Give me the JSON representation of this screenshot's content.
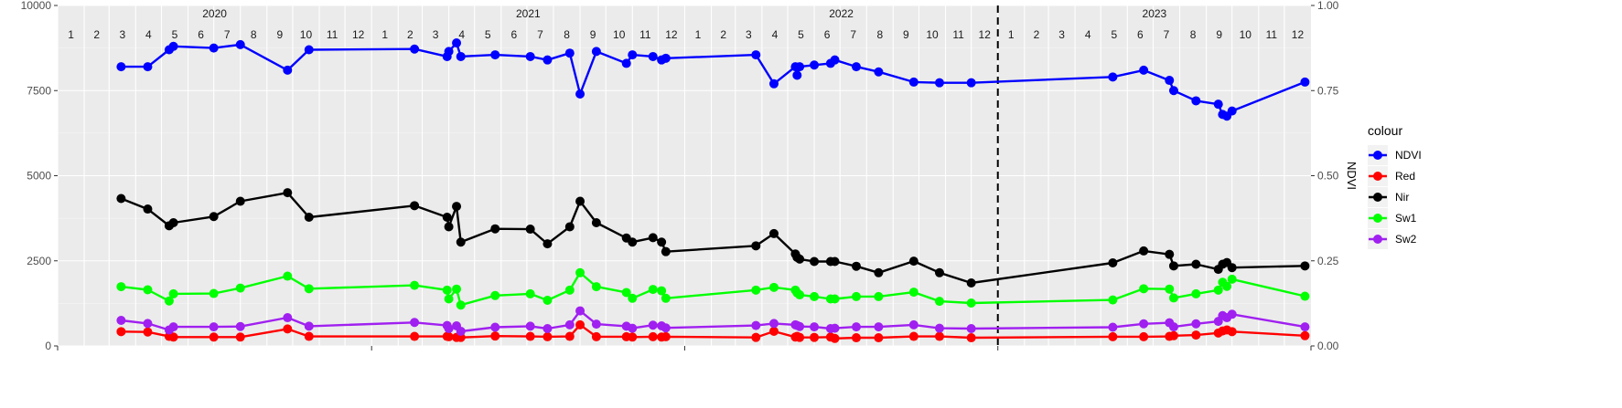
{
  "chart_data": {
    "type": "line",
    "title": "",
    "xlabel": "",
    "ylabel_left": "",
    "ylabel_right": "NDVI",
    "ylim_left": [
      0,
      10000
    ],
    "ylim_right": [
      0,
      1
    ],
    "xlim": [
      "2020-01-01",
      "2024-01-01"
    ],
    "left_ticks": [
      "0",
      "2500",
      "5000",
      "7500",
      "10000"
    ],
    "right_ticks": [
      "0.00",
      "0.25",
      "0.50",
      "0.75",
      "1.00"
    ],
    "years": [
      "2020",
      "2021",
      "2022",
      "2023"
    ],
    "month_labels": [
      "1",
      "2",
      "3",
      "4",
      "5",
      "6",
      "7",
      "8",
      "9",
      "10",
      "11",
      "12"
    ],
    "vline_date": "2023-01-01",
    "grid": true,
    "legend": {
      "title": "colour",
      "position": "right",
      "entries": [
        "NDVI",
        "Red",
        "Nir",
        "Sw1",
        "Sw2"
      ]
    },
    "colors": {
      "NDVI": "#0000ff",
      "Red": "#ff0000",
      "Nir": "#000000",
      "Sw1": "#00ff00",
      "Sw2": "#a020f0"
    },
    "series": [
      {
        "name": "NDVI",
        "axis": "right",
        "points": [
          [
            "2020-03-15",
            0.82
          ],
          [
            "2020-04-15",
            0.82
          ],
          [
            "2020-05-10",
            0.87
          ],
          [
            "2020-05-15",
            0.88
          ],
          [
            "2020-07-01",
            0.875
          ],
          [
            "2020-08-01",
            0.885
          ],
          [
            "2020-09-25",
            0.81
          ],
          [
            "2020-10-20",
            0.87
          ],
          [
            "2021-02-20",
            0.872
          ],
          [
            "2021-03-30",
            0.85
          ],
          [
            "2021-04-01",
            0.865
          ],
          [
            "2021-04-10",
            0.89
          ],
          [
            "2021-04-15",
            0.85
          ],
          [
            "2021-05-25",
            0.855
          ],
          [
            "2021-07-05",
            0.85
          ],
          [
            "2021-07-25",
            0.84
          ],
          [
            "2021-08-20",
            0.86
          ],
          [
            "2021-09-01",
            0.74
          ],
          [
            "2021-09-20",
            0.865
          ],
          [
            "2021-10-25",
            0.83
          ],
          [
            "2021-11-01",
            0.855
          ],
          [
            "2021-11-25",
            0.85
          ],
          [
            "2021-12-05",
            0.84
          ],
          [
            "2021-12-10",
            0.845
          ],
          [
            "2022-03-25",
            0.855
          ],
          [
            "2022-04-15",
            0.77
          ],
          [
            "2022-05-10",
            0.82
          ],
          [
            "2022-05-12",
            0.795
          ],
          [
            "2022-05-15",
            0.82
          ],
          [
            "2022-06-01",
            0.825
          ],
          [
            "2022-06-20",
            0.83
          ],
          [
            "2022-06-25",
            0.84
          ],
          [
            "2022-07-20",
            0.82
          ],
          [
            "2022-08-15",
            0.805
          ],
          [
            "2022-09-25",
            0.775
          ],
          [
            "2022-10-25",
            0.773
          ],
          [
            "2022-12-01",
            0.773
          ],
          [
            "2023-05-15",
            0.79
          ],
          [
            "2023-06-20",
            0.81
          ],
          [
            "2023-07-20",
            0.78
          ],
          [
            "2023-07-25",
            0.75
          ],
          [
            "2023-08-20",
            0.72
          ],
          [
            "2023-09-15",
            0.71
          ],
          [
            "2023-09-20",
            0.68
          ],
          [
            "2023-09-25",
            0.675
          ],
          [
            "2023-10-01",
            0.69
          ],
          [
            "2023-12-25",
            0.775
          ]
        ]
      },
      {
        "name": "Red",
        "axis": "left",
        "points": [
          [
            "2020-03-15",
            420
          ],
          [
            "2020-04-15",
            410
          ],
          [
            "2020-05-10",
            280
          ],
          [
            "2020-05-15",
            260
          ],
          [
            "2020-07-01",
            260
          ],
          [
            "2020-08-01",
            260
          ],
          [
            "2020-09-25",
            500
          ],
          [
            "2020-10-20",
            280
          ],
          [
            "2021-02-20",
            280
          ],
          [
            "2021-03-30",
            280
          ],
          [
            "2021-04-01",
            270
          ],
          [
            "2021-04-10",
            250
          ],
          [
            "2021-04-15",
            250
          ],
          [
            "2021-05-25",
            290
          ],
          [
            "2021-07-05",
            280
          ],
          [
            "2021-07-25",
            270
          ],
          [
            "2021-08-20",
            280
          ],
          [
            "2021-09-01",
            620
          ],
          [
            "2021-09-20",
            270
          ],
          [
            "2021-10-25",
            270
          ],
          [
            "2021-11-01",
            260
          ],
          [
            "2021-11-25",
            270
          ],
          [
            "2021-12-05",
            260
          ],
          [
            "2021-12-10",
            270
          ],
          [
            "2022-03-25",
            250
          ],
          [
            "2022-04-15",
            430
          ],
          [
            "2022-05-10",
            260
          ],
          [
            "2022-05-12",
            280
          ],
          [
            "2022-05-15",
            250
          ],
          [
            "2022-06-01",
            250
          ],
          [
            "2022-06-20",
            260
          ],
          [
            "2022-06-25",
            220
          ],
          [
            "2022-07-20",
            240
          ],
          [
            "2022-08-15",
            240
          ],
          [
            "2022-09-25",
            280
          ],
          [
            "2022-10-25",
            280
          ],
          [
            "2022-12-01",
            240
          ],
          [
            "2023-05-15",
            270
          ],
          [
            "2023-06-20",
            270
          ],
          [
            "2023-07-20",
            280
          ],
          [
            "2023-07-25",
            300
          ],
          [
            "2023-08-20",
            320
          ],
          [
            "2023-09-15",
            380
          ],
          [
            "2023-09-20",
            440
          ],
          [
            "2023-09-25",
            470
          ],
          [
            "2023-10-01",
            420
          ],
          [
            "2023-12-25",
            300
          ]
        ]
      },
      {
        "name": "Nir",
        "axis": "left",
        "points": [
          [
            "2020-03-15",
            4330
          ],
          [
            "2020-04-15",
            4020
          ],
          [
            "2020-05-10",
            3530
          ],
          [
            "2020-05-15",
            3620
          ],
          [
            "2020-07-01",
            3800
          ],
          [
            "2020-08-01",
            4250
          ],
          [
            "2020-09-25",
            4500
          ],
          [
            "2020-10-20",
            3780
          ],
          [
            "2021-02-20",
            4120
          ],
          [
            "2021-03-30",
            3780
          ],
          [
            "2021-04-01",
            3500
          ],
          [
            "2021-04-10",
            4100
          ],
          [
            "2021-04-15",
            3050
          ],
          [
            "2021-05-25",
            3440
          ],
          [
            "2021-07-05",
            3430
          ],
          [
            "2021-07-25",
            3000
          ],
          [
            "2021-08-20",
            3500
          ],
          [
            "2021-09-01",
            4250
          ],
          [
            "2021-09-20",
            3620
          ],
          [
            "2021-10-25",
            3170
          ],
          [
            "2021-11-01",
            3050
          ],
          [
            "2021-11-25",
            3180
          ],
          [
            "2021-12-05",
            3050
          ],
          [
            "2021-12-10",
            2770
          ],
          [
            "2022-03-25",
            2940
          ],
          [
            "2022-04-15",
            3300
          ],
          [
            "2022-05-10",
            2700
          ],
          [
            "2022-05-12",
            2600
          ],
          [
            "2022-05-15",
            2550
          ],
          [
            "2022-06-01",
            2480
          ],
          [
            "2022-06-20",
            2480
          ],
          [
            "2022-06-25",
            2480
          ],
          [
            "2022-07-20",
            2340
          ],
          [
            "2022-08-15",
            2150
          ],
          [
            "2022-09-25",
            2490
          ],
          [
            "2022-10-25",
            2150
          ],
          [
            "2022-12-01",
            1850
          ],
          [
            "2023-05-15",
            2440
          ],
          [
            "2023-06-20",
            2790
          ],
          [
            "2023-07-20",
            2690
          ],
          [
            "2023-07-25",
            2350
          ],
          [
            "2023-08-20",
            2400
          ],
          [
            "2023-09-15",
            2250
          ],
          [
            "2023-09-20",
            2400
          ],
          [
            "2023-09-25",
            2450
          ],
          [
            "2023-10-01",
            2300
          ],
          [
            "2023-12-25",
            2350
          ]
        ]
      },
      {
        "name": "Sw1",
        "axis": "left",
        "points": [
          [
            "2020-03-15",
            1740
          ],
          [
            "2020-04-15",
            1650
          ],
          [
            "2020-05-10",
            1320
          ],
          [
            "2020-05-15",
            1530
          ],
          [
            "2020-07-01",
            1540
          ],
          [
            "2020-08-01",
            1700
          ],
          [
            "2020-09-25",
            2050
          ],
          [
            "2020-10-20",
            1680
          ],
          [
            "2021-02-20",
            1780
          ],
          [
            "2021-03-30",
            1640
          ],
          [
            "2021-04-01",
            1380
          ],
          [
            "2021-04-10",
            1670
          ],
          [
            "2021-04-15",
            1200
          ],
          [
            "2021-05-25",
            1480
          ],
          [
            "2021-07-05",
            1530
          ],
          [
            "2021-07-25",
            1340
          ],
          [
            "2021-08-20",
            1640
          ],
          [
            "2021-09-01",
            2150
          ],
          [
            "2021-09-20",
            1740
          ],
          [
            "2021-10-25",
            1570
          ],
          [
            "2021-11-01",
            1400
          ],
          [
            "2021-11-25",
            1660
          ],
          [
            "2021-12-05",
            1620
          ],
          [
            "2021-12-10",
            1400
          ],
          [
            "2022-03-25",
            1640
          ],
          [
            "2022-04-15",
            1720
          ],
          [
            "2022-05-10",
            1640
          ],
          [
            "2022-05-12",
            1560
          ],
          [
            "2022-05-15",
            1500
          ],
          [
            "2022-06-01",
            1450
          ],
          [
            "2022-06-20",
            1380
          ],
          [
            "2022-06-25",
            1380
          ],
          [
            "2022-07-20",
            1450
          ],
          [
            "2022-08-15",
            1450
          ],
          [
            "2022-09-25",
            1580
          ],
          [
            "2022-10-25",
            1310
          ],
          [
            "2022-12-01",
            1260
          ],
          [
            "2023-05-15",
            1350
          ],
          [
            "2023-06-20",
            1680
          ],
          [
            "2023-07-20",
            1670
          ],
          [
            "2023-07-25",
            1410
          ],
          [
            "2023-08-20",
            1530
          ],
          [
            "2023-09-15",
            1640
          ],
          [
            "2023-09-20",
            1870
          ],
          [
            "2023-09-25",
            1750
          ],
          [
            "2023-10-01",
            1960
          ],
          [
            "2023-12-25",
            1460
          ]
        ]
      },
      {
        "name": "Sw2",
        "axis": "left",
        "points": [
          [
            "2020-03-15",
            750
          ],
          [
            "2020-04-15",
            660
          ],
          [
            "2020-05-10",
            470
          ],
          [
            "2020-05-15",
            560
          ],
          [
            "2020-07-01",
            560
          ],
          [
            "2020-08-01",
            570
          ],
          [
            "2020-09-25",
            830
          ],
          [
            "2020-10-20",
            580
          ],
          [
            "2021-02-20",
            690
          ],
          [
            "2021-03-30",
            600
          ],
          [
            "2021-04-01",
            510
          ],
          [
            "2021-04-10",
            590
          ],
          [
            "2021-04-15",
            430
          ],
          [
            "2021-05-25",
            550
          ],
          [
            "2021-07-05",
            580
          ],
          [
            "2021-07-25",
            510
          ],
          [
            "2021-08-20",
            620
          ],
          [
            "2021-09-01",
            1030
          ],
          [
            "2021-09-20",
            640
          ],
          [
            "2021-10-25",
            580
          ],
          [
            "2021-11-01",
            520
          ],
          [
            "2021-11-25",
            610
          ],
          [
            "2021-12-05",
            590
          ],
          [
            "2021-12-10",
            530
          ],
          [
            "2022-03-25",
            600
          ],
          [
            "2022-04-15",
            660
          ],
          [
            "2022-05-10",
            620
          ],
          [
            "2022-05-12",
            600
          ],
          [
            "2022-05-15",
            570
          ],
          [
            "2022-06-01",
            560
          ],
          [
            "2022-06-20",
            510
          ],
          [
            "2022-06-25",
            520
          ],
          [
            "2022-07-20",
            560
          ],
          [
            "2022-08-15",
            560
          ],
          [
            "2022-09-25",
            620
          ],
          [
            "2022-10-25",
            520
          ],
          [
            "2022-12-01",
            510
          ],
          [
            "2023-05-15",
            550
          ],
          [
            "2023-06-20",
            650
          ],
          [
            "2023-07-20",
            680
          ],
          [
            "2023-07-25",
            560
          ],
          [
            "2023-08-20",
            650
          ],
          [
            "2023-09-15",
            720
          ],
          [
            "2023-09-20",
            890
          ],
          [
            "2023-09-25",
            830
          ],
          [
            "2023-10-01",
            930
          ],
          [
            "2023-12-25",
            560
          ]
        ]
      }
    ]
  }
}
